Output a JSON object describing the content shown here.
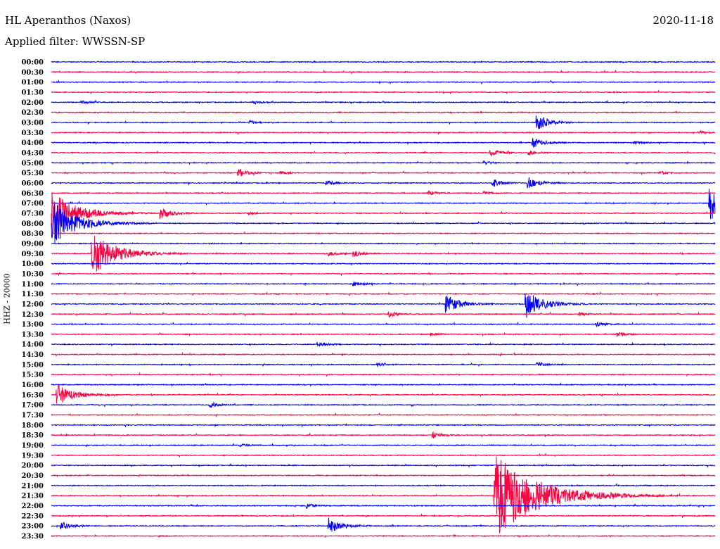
{
  "header": {
    "station": "HL Aperanthos (Naxos)",
    "date": "2020-11-18",
    "filter": "Applied filter: WWSSN-SP"
  },
  "chart_data": {
    "type": "line",
    "title": "HL Aperanthos (Naxos)",
    "ylabel": "HHZ - 20000",
    "xlabel": "",
    "x_range_minutes": [
      0,
      30
    ],
    "colors": {
      "blue": "#0000ff",
      "red": "#ff0040"
    },
    "rows": [
      "00:00",
      "00:30",
      "01:00",
      "01:30",
      "02:00",
      "02:30",
      "03:00",
      "03:30",
      "04:00",
      "04:30",
      "05:00",
      "05:30",
      "06:00",
      "06:30",
      "07:00",
      "07:30",
      "08:00",
      "08:30",
      "09:00",
      "09:30",
      "10:00",
      "10:30",
      "11:00",
      "11:30",
      "12:00",
      "12:30",
      "13:00",
      "13:30",
      "14:00",
      "14:30",
      "15:00",
      "15:30",
      "16:00",
      "16:30",
      "17:00",
      "17:30",
      "18:00",
      "18:30",
      "19:00",
      "19:30",
      "20:00",
      "20:30",
      "21:00",
      "21:30",
      "22:00",
      "22:30",
      "23:00",
      "23:30"
    ],
    "events": [
      {
        "row": "02:00",
        "minute": 1.4,
        "amp": 2
      },
      {
        "row": "02:00",
        "minute": 9.2,
        "amp": 2
      },
      {
        "row": "03:00",
        "minute": 9.0,
        "amp": 2
      },
      {
        "row": "03:00",
        "minute": 22.0,
        "amp": 10
      },
      {
        "row": "03:30",
        "minute": 29.3,
        "amp": 2
      },
      {
        "row": "04:00",
        "minute": 21.8,
        "amp": 7
      },
      {
        "row": "04:00",
        "minute": 26.4,
        "amp": 2
      },
      {
        "row": "04:30",
        "minute": 19.9,
        "amp": 5
      },
      {
        "row": "04:30",
        "minute": 21.6,
        "amp": 3
      },
      {
        "row": "05:00",
        "minute": 19.6,
        "amp": 2
      },
      {
        "row": "05:30",
        "minute": 8.5,
        "amp": 5
      },
      {
        "row": "05:30",
        "minute": 10.4,
        "amp": 2
      },
      {
        "row": "05:30",
        "minute": 27.6,
        "amp": 2
      },
      {
        "row": "06:00",
        "minute": 12.5,
        "amp": 3
      },
      {
        "row": "06:00",
        "minute": 20.0,
        "amp": 5
      },
      {
        "row": "06:00",
        "minute": 21.6,
        "amp": 8
      },
      {
        "row": "06:30",
        "minute": 17.1,
        "amp": 3
      },
      {
        "row": "06:30",
        "minute": 19.6,
        "amp": 2
      },
      {
        "row": "07:00",
        "minute": 29.8,
        "amp": 25
      },
      {
        "row": "07:30",
        "minute": 0.1,
        "amp": 30
      },
      {
        "row": "07:30",
        "minute": 5.0,
        "amp": 8
      },
      {
        "row": "07:30",
        "minute": 9.0,
        "amp": 2
      },
      {
        "row": "08:00",
        "minute": 0.1,
        "amp": 30
      },
      {
        "row": "09:30",
        "minute": 1.9,
        "amp": 30
      },
      {
        "row": "09:30",
        "minute": 12.6,
        "amp": 3
      },
      {
        "row": "09:30",
        "minute": 13.7,
        "amp": 4
      },
      {
        "row": "11:00",
        "minute": 13.7,
        "amp": 3
      },
      {
        "row": "12:00",
        "minute": 17.9,
        "amp": 12
      },
      {
        "row": "12:00",
        "minute": 21.5,
        "amp": 18
      },
      {
        "row": "12:30",
        "minute": 15.3,
        "amp": 4
      },
      {
        "row": "12:30",
        "minute": 23.9,
        "amp": 2
      },
      {
        "row": "13:00",
        "minute": 24.7,
        "amp": 3
      },
      {
        "row": "13:30",
        "minute": 17.2,
        "amp": 2
      },
      {
        "row": "13:30",
        "minute": 25.6,
        "amp": 3
      },
      {
        "row": "14:00",
        "minute": 12.1,
        "amp": 3
      },
      {
        "row": "15:00",
        "minute": 14.8,
        "amp": 2
      },
      {
        "row": "15:00",
        "minute": 22.0,
        "amp": 3
      },
      {
        "row": "16:30",
        "minute": 0.3,
        "amp": 15
      },
      {
        "row": "17:00",
        "minute": 7.2,
        "amp": 3
      },
      {
        "row": "18:30",
        "minute": 17.3,
        "amp": 4
      },
      {
        "row": "19:00",
        "minute": 8.6,
        "amp": 2
      },
      {
        "row": "21:30",
        "minute": 20.1,
        "amp": 60
      },
      {
        "row": "22:00",
        "minute": 11.6,
        "amp": 3
      },
      {
        "row": "23:00",
        "minute": 0.5,
        "amp": 6
      },
      {
        "row": "23:00",
        "minute": 12.6,
        "amp": 10
      }
    ]
  }
}
